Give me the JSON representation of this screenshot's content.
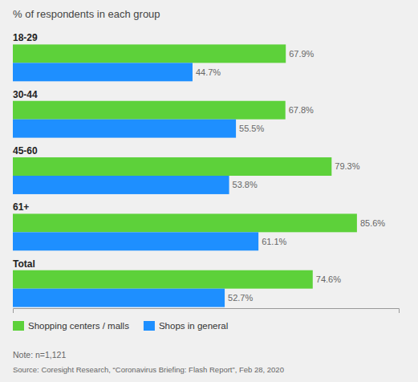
{
  "chart_data": {
    "type": "bar",
    "orientation": "horizontal",
    "title": "% of respondents in each group",
    "categories": [
      "18-29",
      "30-44",
      "45-60",
      "61+",
      "Total"
    ],
    "series": [
      {
        "name": "Shopping centers / malls",
        "color": "#5DD13A",
        "values": [
          67.9,
          67.8,
          79.3,
          85.6,
          74.6
        ],
        "value_labels": [
          "67.9%",
          "67.8%",
          "79.3%",
          "85.6%",
          "74.6%"
        ]
      },
      {
        "name": "Shops in general",
        "color": "#1E8FFF",
        "values": [
          44.7,
          55.5,
          53.8,
          61.1,
          52.7
        ],
        "value_labels": [
          "44.7%",
          "55.5%",
          "53.8%",
          "61.1%",
          "52.7%"
        ]
      }
    ],
    "xlim": [
      0,
      96
    ],
    "tick_labels": false,
    "grid": false,
    "data_labels": true,
    "legend": "bottom",
    "annotations": [
      "Note: n=1,121",
      "Source: Coresight Research, “Coronavirus Briefing: Flash Report”, Feb 28, 2020"
    ]
  }
}
